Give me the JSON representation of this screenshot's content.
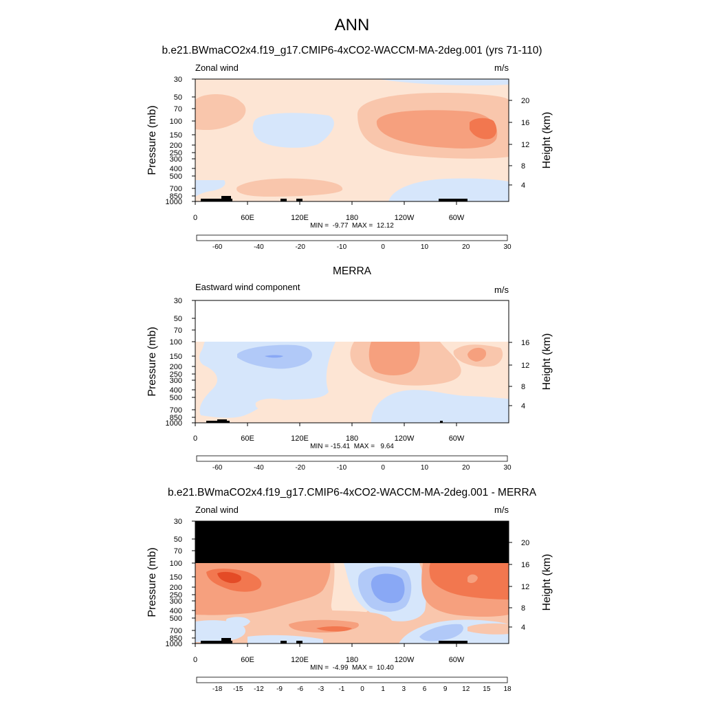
{
  "page": {
    "title": "ANN"
  },
  "panels": [
    {
      "title": "b.e21.BWmaCO2x4.f19_g17.CMIP6-4xCO2-WACCM-MA-2deg.001 (yrs 71-110)",
      "left_label": "Zonal wind",
      "right_label": "m/s",
      "ylabel": "Pressure (mb)",
      "y2label": "Height (km)",
      "stats": "MIN =  -9.77  MAX =  12.12"
    },
    {
      "title": "MERRA",
      "left_label": "Eastward wind component",
      "right_label": "m/s",
      "ylabel": "Pressure (mb)",
      "y2label": "Height (km)",
      "stats": "MIN = -15.41  MAX =   9.64"
    },
    {
      "title": "b.e21.BWmaCO2x4.f19_g17.CMIP6-4xCO2-WACCM-MA-2deg.001 - MERRA",
      "left_label": "Zonal wind",
      "right_label": "m/s",
      "ylabel": "Pressure (mb)",
      "y2label": "Height (km)",
      "stats": "MIN =  -4.99  MAX =  10.40"
    }
  ],
  "chart_data": [
    {
      "type": "heatmap",
      "title": "b.e21.BWmaCO2x4.f19_g17.CMIP6-4xCO2-WACCM-MA-2deg.001 (yrs 71-110)",
      "xlabel": "",
      "ylabel": "Pressure (mb)",
      "y2label": "Height (km)",
      "xlim": [
        0,
        360
      ],
      "ylim": [
        1000,
        30
      ],
      "yscale": "log",
      "x_ticks": [
        "0",
        "60E",
        "120E",
        "180",
        "120W",
        "60W"
      ],
      "y_ticks": [
        "30",
        "50",
        "70",
        "100",
        "150",
        "200",
        "250",
        "300",
        "400",
        "500",
        "700",
        "850",
        "1000"
      ],
      "y2_ticks": [
        "4",
        "8",
        "12",
        "16",
        "20"
      ],
      "colorbar_levels": [
        "-60",
        "-40",
        "-20",
        "-10",
        "0",
        "10",
        "20",
        "30"
      ],
      "colors": [
        "#08085c",
        "#0a22a8",
        "#1f4fe0",
        "#4f7ff0",
        "#89a8f5",
        "#b1c9f8",
        "#d6e6fb",
        "#fde5d4",
        "#f9c6ac",
        "#f6a07e",
        "#f2774f",
        "#e44b26",
        "#c0281a",
        "#8b1414",
        "#5a0808"
      ],
      "min": -9.77,
      "max": 12.12,
      "features": [
        {
          "kind": "minimum",
          "lon": 70,
          "pressure": 120,
          "level": -5
        },
        {
          "kind": "maximum",
          "lon": 330,
          "pressure": 120,
          "level": 10
        },
        {
          "kind": "region",
          "lon_range": [
            200,
            330
          ],
          "pressure_range": [
            80,
            250
          ],
          "level": 5
        },
        {
          "kind": "region",
          "lon_range": [
            60,
            160
          ],
          "pressure_range": [
            450,
            900
          ],
          "level": 5
        },
        {
          "kind": "region",
          "lon_range": [
            215,
            290
          ],
          "pressure_range": [
            650,
            1000
          ],
          "level": -5
        }
      ]
    },
    {
      "type": "heatmap",
      "title": "MERRA",
      "xlabel": "",
      "ylabel": "Pressure (mb)",
      "y2label": "Height (km)",
      "xlim": [
        0,
        360
      ],
      "ylim": [
        1000,
        30
      ],
      "yscale": "log",
      "data_top_pressure": 100,
      "x_ticks": [
        "0",
        "60E",
        "120E",
        "180",
        "120W",
        "60W"
      ],
      "y_ticks": [
        "30",
        "50",
        "70",
        "100",
        "150",
        "200",
        "250",
        "300",
        "400",
        "500",
        "700",
        "850",
        "1000"
      ],
      "y2_ticks": [
        "4",
        "8",
        "12",
        "16"
      ],
      "colorbar_levels": [
        "-60",
        "-40",
        "-20",
        "-10",
        "0",
        "10",
        "20",
        "30"
      ],
      "colors": [
        "#08085c",
        "#0a22a8",
        "#1f4fe0",
        "#4f7ff0",
        "#89a8f5",
        "#b1c9f8",
        "#d6e6fb",
        "#fde5d4",
        "#f9c6ac",
        "#f6a07e",
        "#f2774f",
        "#e44b26",
        "#c0281a",
        "#8b1414",
        "#5a0808"
      ],
      "min": -15.41,
      "max": 9.64,
      "features": [
        {
          "kind": "minimum",
          "lon": 95,
          "pressure": 150,
          "level": -10
        },
        {
          "kind": "maximum",
          "lon": 225,
          "pressure": 170,
          "level": 5
        },
        {
          "kind": "maximum",
          "lon": 320,
          "pressure": 150,
          "level": 5
        }
      ]
    },
    {
      "type": "heatmap",
      "title": "b.e21.BWmaCO2x4.f19_g17.CMIP6-4xCO2-WACCM-MA-2deg.001 - MERRA",
      "xlabel": "",
      "ylabel": "Pressure (mb)",
      "y2label": "Height (km)",
      "xlim": [
        0,
        360
      ],
      "ylim": [
        1000,
        30
      ],
      "yscale": "log",
      "data_top_pressure": 100,
      "x_ticks": [
        "0",
        "60E",
        "120E",
        "180",
        "120W",
        "60W"
      ],
      "y_ticks": [
        "30",
        "50",
        "70",
        "100",
        "150",
        "200",
        "250",
        "300",
        "400",
        "500",
        "700",
        "850",
        "1000"
      ],
      "y2_ticks": [
        "4",
        "8",
        "12",
        "16",
        "20"
      ],
      "colorbar_levels": [
        "-18",
        "-15",
        "-12",
        "-9",
        "-6",
        "-3",
        "-1",
        "0",
        "1",
        "3",
        "6",
        "9",
        "12",
        "15",
        "18"
      ],
      "colors": [
        "#08085c",
        "#0a22a8",
        "#1f4fe0",
        "#4f7ff0",
        "#89a8f5",
        "#b1c9f8",
        "#d6e6fb",
        "#fde5d4",
        "#f9c6ac",
        "#f6a07e",
        "#f2774f",
        "#e44b26",
        "#c0281a",
        "#8b1414",
        "#5a0808"
      ],
      "min": -4.99,
      "max": 10.4,
      "features": [
        {
          "kind": "maximum",
          "lon": 40,
          "pressure": 180,
          "level": 9
        },
        {
          "kind": "minimum",
          "lon": 225,
          "pressure": 220,
          "level": -3
        },
        {
          "kind": "region",
          "lon_range": [
            250,
            360
          ],
          "pressure_range": [
            100,
            600
          ],
          "level": 6
        }
      ]
    }
  ]
}
